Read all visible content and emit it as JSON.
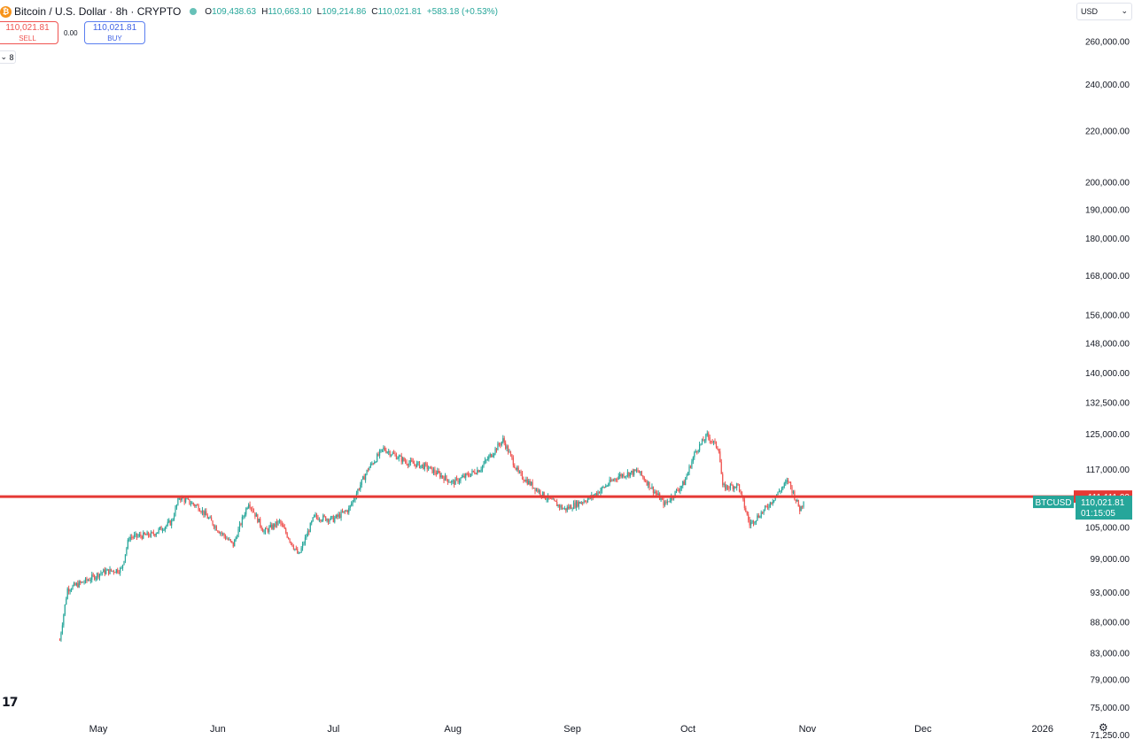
{
  "header": {
    "symbol_icon": "bitcoin-icon",
    "title": "Bitcoin / U.S. Dollar · 8h · CRYPTO",
    "open_label": "O",
    "open": "109,438.63",
    "high_label": "H",
    "high": "110,663.10",
    "low_label": "L",
    "low": "109,214.86",
    "close_label": "C",
    "close": "110,021.81",
    "change": "+583.18 (+0.53%)"
  },
  "trade": {
    "sell_price": "110,021.81",
    "sell_label": "SELL",
    "spread": "0.00",
    "buy_price": "110,021.81",
    "buy_label": "BUY"
  },
  "indicators_toggle": "8",
  "currency": "USD",
  "colors": {
    "up": "#26a69a",
    "down": "#ef5350",
    "hline": "#e53935"
  },
  "chart_data": {
    "type": "candlestick",
    "symbol": "BTCUSD",
    "interval": "8h",
    "y_scale": "log",
    "y_ticks": [
      "260,000.00",
      "240,000.00",
      "220,000.00",
      "200,000.00",
      "190,000.00",
      "180,000.00",
      "168,000.00",
      "156,000.00",
      "148,000.00",
      "140,000.00",
      "132,500.00",
      "125,000.00",
      "117,000.00",
      "105,000.00",
      "99,000.00",
      "93,000.00",
      "88,000.00",
      "83,000.00",
      "79,000.00",
      "75,000.00",
      "71,250.00"
    ],
    "x_ticks": [
      "May",
      "Jun",
      "Jul",
      "Aug",
      "Sep",
      "Oct",
      "Nov",
      "Dec",
      "2026"
    ],
    "horizontal_line": {
      "value": 111111.0,
      "label": "111,111.00"
    },
    "last_price": {
      "symbol": "BTCUSD",
      "value": "110,021.81",
      "countdown": "01:15:05"
    },
    "price_path": [
      [
        "Apr 21",
        85000
      ],
      [
        "Apr 23",
        93500
      ],
      [
        "Apr 28",
        95000
      ],
      [
        "May 2",
        96500
      ],
      [
        "May 7",
        97000
      ],
      [
        "May 9",
        103000
      ],
      [
        "May 15",
        103500
      ],
      [
        "May 20",
        106000
      ],
      [
        "May 22",
        111000
      ],
      [
        "May 27",
        109000
      ],
      [
        "Jun 1",
        104500
      ],
      [
        "Jun 5",
        101500
      ],
      [
        "Jun 9",
        110000
      ],
      [
        "Jun 13",
        104000
      ],
      [
        "Jun 17",
        106000
      ],
      [
        "Jun 22",
        99500
      ],
      [
        "Jun 26",
        107000
      ],
      [
        "Jul 1",
        106500
      ],
      [
        "Jul 5",
        108500
      ],
      [
        "Jul 10",
        117000
      ],
      [
        "Jul 14",
        121500
      ],
      [
        "Jul 20",
        118500
      ],
      [
        "Jul 25",
        117500
      ],
      [
        "Aug 1",
        114000
      ],
      [
        "Aug 8",
        117000
      ],
      [
        "Aug 14",
        123500
      ],
      [
        "Aug 18",
        116000
      ],
      [
        "Aug 25",
        111000
      ],
      [
        "Aug 30",
        108500
      ],
      [
        "Sep 6",
        111000
      ],
      [
        "Sep 13",
        115500
      ],
      [
        "Sep 18",
        116500
      ],
      [
        "Sep 25",
        109500
      ],
      [
        "Sep 30",
        114000
      ],
      [
        "Oct 3",
        121000
      ],
      [
        "Oct 6",
        124500
      ],
      [
        "Oct 9",
        121500
      ],
      [
        "Oct 10",
        113000
      ],
      [
        "Oct 14",
        113500
      ],
      [
        "Oct 17",
        105500
      ],
      [
        "Oct 21",
        108500
      ],
      [
        "Oct 27",
        114500
      ],
      [
        "Oct 30",
        108500
      ],
      [
        "Oct 31",
        110021.81
      ]
    ]
  }
}
